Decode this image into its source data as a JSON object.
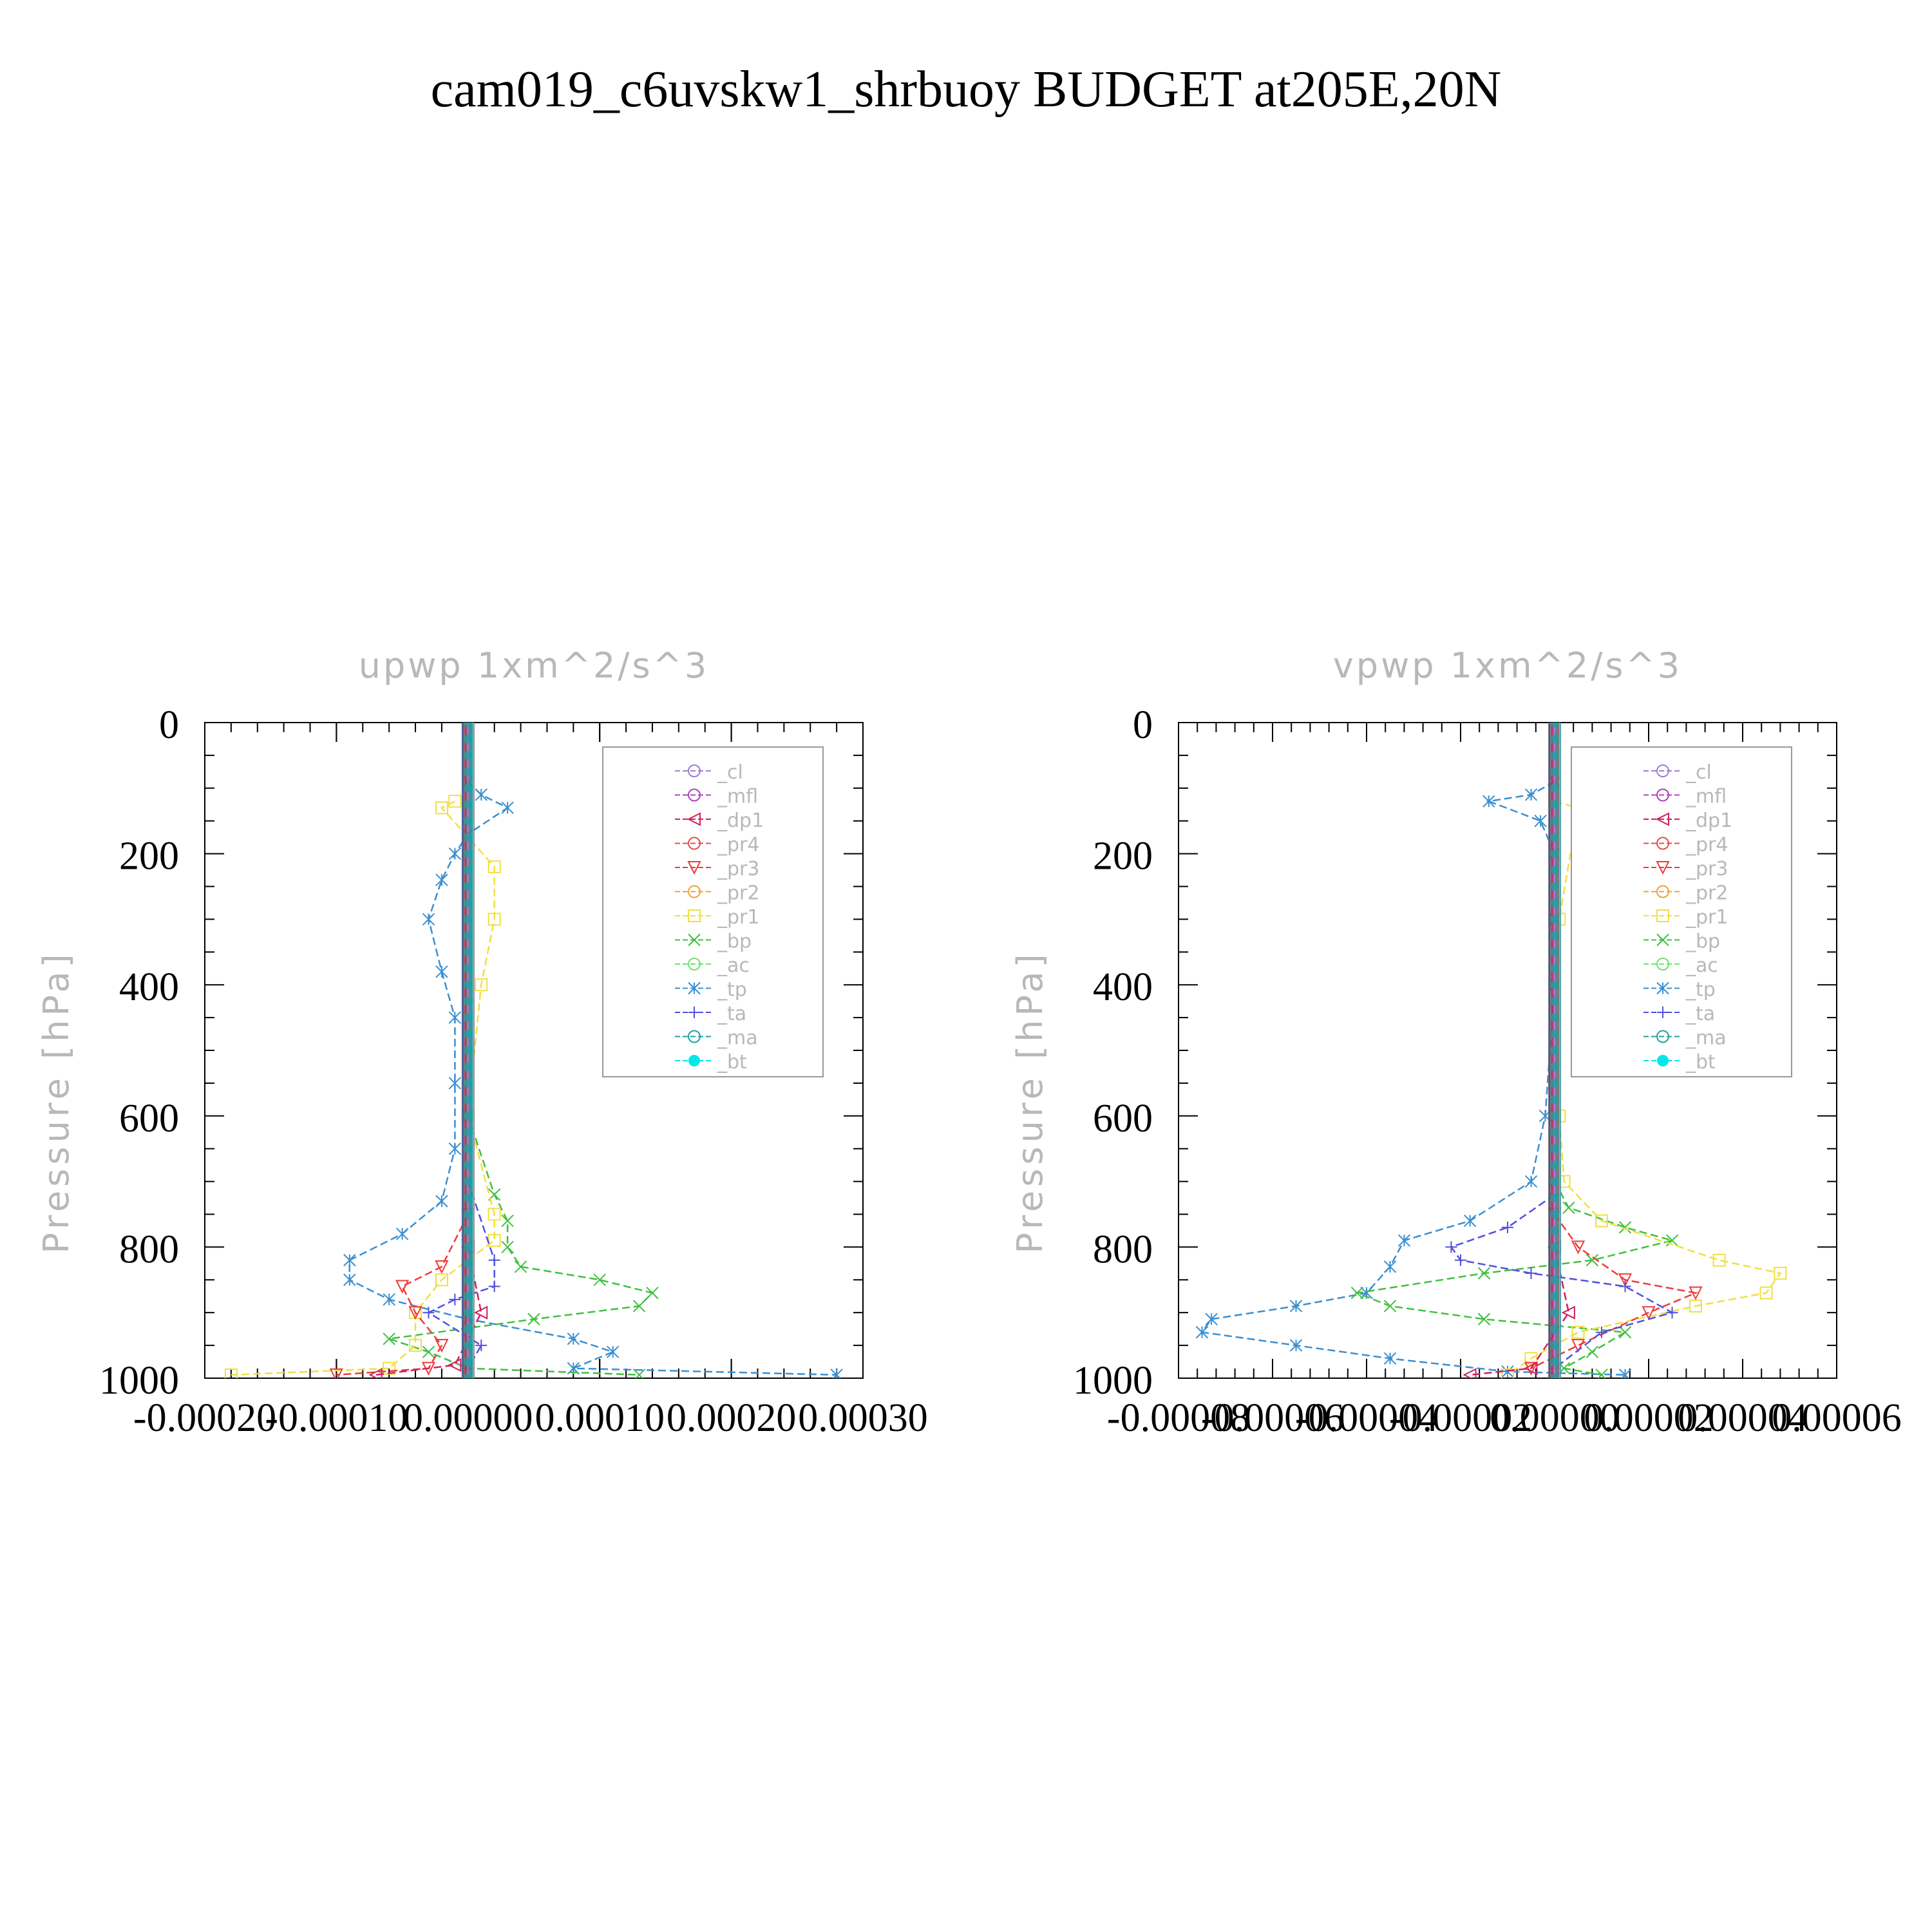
{
  "title": "cam019_c6uvskw1_shrbuoy  BUDGET at205E,20N",
  "legend_entries": [
    "_cl",
    "_mfl",
    "_dp1",
    "_pr4",
    "_pr3",
    "_pr2",
    "_pr1",
    "_bp",
    "_ac",
    "_tp",
    "_ta",
    "_ma",
    "_bt"
  ],
  "series_colors": {
    "_cl": "#9b7fd4",
    "_mfl": "#b040c0",
    "_dp1": "#d02060",
    "_pr4": "#e05050",
    "_pr3": "#f03a3a",
    "_pr2": "#f0a040",
    "_pr1": "#f0e040",
    "_bp": "#40c040",
    "_ac": "#70e070",
    "_tp": "#3a8fd0",
    "_ta": "#5050e0",
    "_ma": "#20a0a0",
    "_bt": "#00e8e8"
  },
  "chart_data": [
    {
      "type": "line",
      "title": "upwp   1xm^2/s^3",
      "ylabel": "Pressure [hPa]",
      "xlim": [
        -0.0002,
        0.0003
      ],
      "ylim": [
        0,
        1000
      ],
      "y_inverted": true,
      "xticks": [
        "-0.00020",
        "-0.00010",
        "0.00000",
        "0.00010",
        "0.00020",
        "0.00030"
      ],
      "yticks": [
        "0",
        "200",
        "400",
        "600",
        "800",
        "1000"
      ],
      "series": [
        {
          "name": "_tp",
          "points": [
            [
              0,
              90
            ],
            [
              1e-05,
              110
            ],
            [
              3e-05,
              130
            ],
            [
              0,
              170
            ],
            [
              -1e-05,
              200
            ],
            [
              -2e-05,
              240
            ],
            [
              -3e-05,
              300
            ],
            [
              -2e-05,
              380
            ],
            [
              -1e-05,
              450
            ],
            [
              -1e-05,
              550
            ],
            [
              -1e-05,
              650
            ],
            [
              -2e-05,
              730
            ],
            [
              -5e-05,
              780
            ],
            [
              -9e-05,
              820
            ],
            [
              -9e-05,
              850
            ],
            [
              -6e-05,
              880
            ],
            [
              0,
              910
            ],
            [
              8e-05,
              940
            ],
            [
              0.00011,
              960
            ],
            [
              8e-05,
              985
            ],
            [
              0.00028,
              995
            ]
          ]
        },
        {
          "name": "_bp",
          "points": [
            [
              0,
              600
            ],
            [
              2e-05,
              720
            ],
            [
              3e-05,
              760
            ],
            [
              3e-05,
              800
            ],
            [
              4e-05,
              830
            ],
            [
              0.0001,
              850
            ],
            [
              0.00014,
              870
            ],
            [
              0.00013,
              890
            ],
            [
              5e-05,
              910
            ],
            [
              -6e-05,
              940
            ],
            [
              -3e-05,
              960
            ],
            [
              0,
              985
            ],
            [
              0.00013,
              995
            ]
          ]
        },
        {
          "name": "_pr1",
          "points": [
            [
              -1e-05,
              120
            ],
            [
              -2e-05,
              130
            ],
            [
              2e-05,
              220
            ],
            [
              2e-05,
              300
            ],
            [
              1e-05,
              400
            ],
            [
              0,
              600
            ],
            [
              2e-05,
              750
            ],
            [
              2e-05,
              790
            ],
            [
              0,
              820
            ],
            [
              -2e-05,
              850
            ],
            [
              -4e-05,
              900
            ],
            [
              -4e-05,
              950
            ],
            [
              -6e-05,
              985
            ],
            [
              -0.00018,
              995
            ]
          ]
        },
        {
          "name": "_pr3",
          "points": [
            [
              0,
              750
            ],
            [
              -2e-05,
              830
            ],
            [
              -5e-05,
              860
            ],
            [
              -4e-05,
              900
            ],
            [
              -2e-05,
              950
            ],
            [
              -3e-05,
              985
            ],
            [
              -0.0001,
              995
            ]
          ]
        },
        {
          "name": "_ta",
          "points": [
            [
              0,
              700
            ],
            [
              2e-05,
              820
            ],
            [
              2e-05,
              860
            ],
            [
              -1e-05,
              880
            ],
            [
              -3e-05,
              900
            ],
            [
              1e-05,
              950
            ],
            [
              0,
              985
            ]
          ]
        },
        {
          "name": "_dp1",
          "points": [
            [
              0,
              800
            ],
            [
              1e-05,
              900
            ],
            [
              -1e-05,
              980
            ],
            [
              -7e-05,
              995
            ]
          ]
        }
      ]
    },
    {
      "type": "line",
      "title": "vpwp   1xm^2/s^3",
      "ylabel": "Pressure [hPa]",
      "xlim": [
        -8e-05,
        6e-05
      ],
      "ylim": [
        0,
        1000
      ],
      "y_inverted": true,
      "xticks": [
        "-0.00008",
        "-0.00006",
        "-0.00004",
        "-0.00002",
        "0.00000",
        "0.00002",
        "0.00004",
        "0.00006"
      ],
      "yticks": [
        "0",
        "200",
        "400",
        "600",
        "800",
        "1000"
      ],
      "series": [
        {
          "name": "_tp",
          "points": [
            [
              0,
              90
            ],
            [
              -5e-06,
              110
            ],
            [
              -1.4e-05,
              120
            ],
            [
              -3e-06,
              150
            ],
            [
              0,
              200
            ],
            [
              0,
              300
            ],
            [
              0,
              400
            ],
            [
              -2e-06,
              600
            ],
            [
              -5e-06,
              700
            ],
            [
              -1.8e-05,
              760
            ],
            [
              -3.2e-05,
              790
            ],
            [
              -3.5e-05,
              830
            ],
            [
              -4e-05,
              870
            ],
            [
              -5.5e-05,
              890
            ],
            [
              -7.3e-05,
              910
            ],
            [
              -7.5e-05,
              930
            ],
            [
              -5.5e-05,
              950
            ],
            [
              -3.5e-05,
              970
            ],
            [
              -1e-05,
              990
            ],
            [
              1.5e-05,
              995
            ]
          ]
        },
        {
          "name": "_bp",
          "points": [
            [
              0,
              700
            ],
            [
              3e-06,
              740
            ],
            [
              1.5e-05,
              770
            ],
            [
              2.5e-05,
              790
            ],
            [
              8e-06,
              820
            ],
            [
              -1.5e-05,
              840
            ],
            [
              -4.2e-05,
              870
            ],
            [
              -3.5e-05,
              890
            ],
            [
              -1.5e-05,
              910
            ],
            [
              1.5e-05,
              930
            ],
            [
              8e-06,
              960
            ],
            [
              2e-06,
              985
            ],
            [
              1e-05,
              995
            ]
          ]
        },
        {
          "name": "_pr1",
          "points": [
            [
              0,
              120
            ],
            [
              5e-06,
              130
            ],
            [
              1e-06,
              300
            ],
            [
              1e-06,
              600
            ],
            [
              2e-06,
              700
            ],
            [
              1e-05,
              760
            ],
            [
              3.5e-05,
              820
            ],
            [
              4.8e-05,
              840
            ],
            [
              4.5e-05,
              870
            ],
            [
              3e-05,
              890
            ],
            [
              5e-06,
              930
            ],
            [
              -5e-06,
              970
            ],
            [
              -1e-05,
              995
            ]
          ]
        },
        {
          "name": "_pr3",
          "points": [
            [
              0,
              750
            ],
            [
              5e-06,
              800
            ],
            [
              1.5e-05,
              850
            ],
            [
              3e-05,
              870
            ],
            [
              2e-05,
              900
            ],
            [
              5e-06,
              950
            ],
            [
              -5e-06,
              985
            ]
          ]
        },
        {
          "name": "_ta",
          "points": [
            [
              0,
              720
            ],
            [
              -1e-05,
              770
            ],
            [
              -2.2e-05,
              800
            ],
            [
              -2e-05,
              820
            ],
            [
              -5e-06,
              840
            ],
            [
              1.5e-05,
              860
            ],
            [
              2.5e-05,
              900
            ],
            [
              1e-05,
              930
            ],
            [
              0,
              985
            ]
          ]
        },
        {
          "name": "_dp1",
          "points": [
            [
              0,
              800
            ],
            [
              3e-06,
              900
            ],
            [
              -5e-06,
              985
            ],
            [
              -1.8e-05,
              995
            ]
          ]
        }
      ]
    }
  ]
}
